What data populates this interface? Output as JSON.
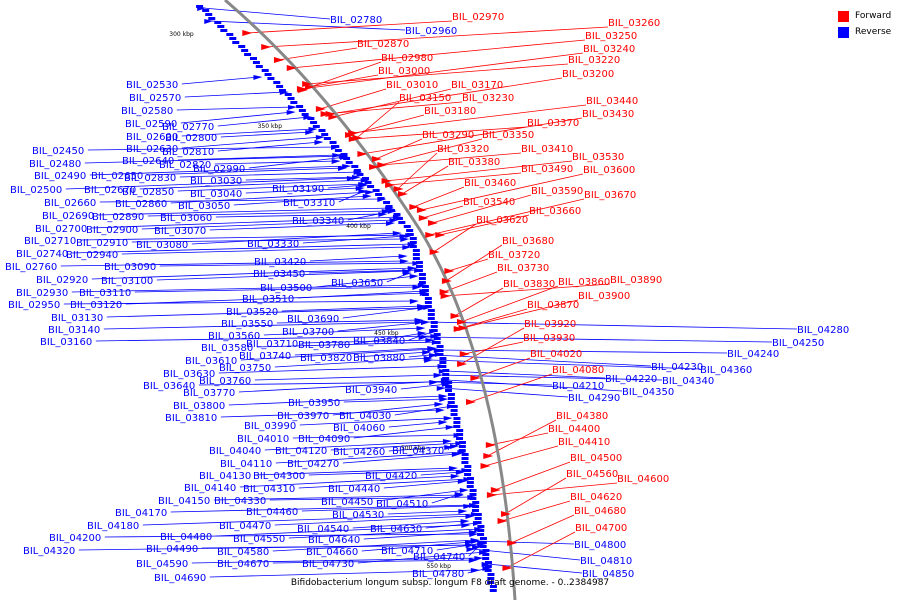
{
  "legend": {
    "forward_label": "Forward",
    "reverse_label": "Reverse",
    "forward_color": "#ff0000",
    "reverse_color": "#0000ff"
  },
  "caption": "Bifidobacterium longum subsp. longum F8 draft genome. - 0..2384987",
  "ticks": [
    "300 kbp",
    "350 kbp",
    "400 kbp",
    "450 kbp",
    "500 kbp",
    "550 kbp"
  ],
  "colors": {
    "backbone": "#888888",
    "forward": "#ff0000",
    "reverse": "#0000ff"
  },
  "reverse_labels": [
    "BIL_02780",
    "BIL_02960",
    "BIL_02530",
    "BIL_02570",
    "BIL_02580",
    "BIL_02590",
    "BIL_02770",
    "BIL_02600",
    "BIL_02800",
    "BIL_02450",
    "BIL_02630",
    "BIL_02810",
    "BIL_02480",
    "BIL_02640",
    "BIL_02820",
    "BIL_02990",
    "BIL_02490",
    "BIL_02650",
    "BIL_02830",
    "BIL_03030",
    "BIL_02500",
    "BIL_02670",
    "BIL_02850",
    "BIL_03040",
    "BIL_02660",
    "BIL_02860",
    "BIL_03050",
    "BIL_02690",
    "BIL_02890",
    "BIL_03060",
    "BIL_02700",
    "BIL_02900",
    "BIL_03070",
    "BIL_02710",
    "BIL_02910",
    "BIL_03080",
    "BIL_02740",
    "BIL_02940",
    "BIL_02760",
    "BIL_03090",
    "BIL_02920",
    "BIL_03100",
    "BIL_02930",
    "BIL_03110",
    "BIL_02950",
    "BIL_03120",
    "BIL_03130",
    "BIL_03140",
    "BIL_03160",
    "BIL_03190",
    "BIL_03310",
    "BIL_03340",
    "BIL_03330",
    "BIL_03420",
    "BIL_03450",
    "BIL_03500",
    "BIL_03650",
    "BIL_03510",
    "BIL_03520",
    "BIL_03550",
    "BIL_03690",
    "BIL_03700",
    "BIL_03560",
    "BIL_03580",
    "BIL_03710",
    "BIL_03780",
    "BIL_03840",
    "BIL_03740",
    "BIL_03820",
    "BIL_03880",
    "BIL_03610",
    "BIL_03750",
    "BIL_03630",
    "BIL_03760",
    "BIL_03640",
    "BIL_03770",
    "BIL_03800",
    "BIL_03810",
    "BIL_03940",
    "BIL_03950",
    "BIL_03970",
    "BIL_04030",
    "BIL_03990",
    "BIL_04060",
    "BIL_04010",
    "BIL_04090",
    "BIL_04040",
    "BIL_04120",
    "BIL_04260",
    "BIL_04370",
    "BIL_04110",
    "BIL_04270",
    "BIL_04130",
    "BIL_04300",
    "BIL_04420",
    "BIL_04140",
    "BIL_04310",
    "BIL_04440",
    "BIL_04150",
    "BIL_04330",
    "BIL_04450",
    "BIL_04510",
    "BIL_04170",
    "BIL_04460",
    "BIL_04530",
    "BIL_04180",
    "BIL_04470",
    "BIL_04540",
    "BIL_04630",
    "BIL_04200",
    "BIL_04480",
    "BIL_04550",
    "BIL_04640",
    "BIL_04320",
    "BIL_04490",
    "BIL_04580",
    "BIL_04660",
    "BIL_04710",
    "BIL_04590",
    "BIL_04670",
    "BIL_04730",
    "BIL_04740",
    "BIL_04690",
    "BIL_04780",
    "BIL_04800",
    "BIL_04810",
    "BIL_04850",
    "BIL_04280",
    "BIL_04250",
    "BIL_04240",
    "BIL_04230",
    "BIL_04360",
    "BIL_04220",
    "BIL_04340",
    "BIL_04210",
    "BIL_04350",
    "BIL_04290"
  ],
  "forward_labels": [
    "BIL_02970",
    "BIL_03260",
    "BIL_03250",
    "BIL_03240",
    "BIL_02870",
    "BIL_03220",
    "BIL_02980",
    "BIL_03200",
    "BIL_03000",
    "BIL_03010",
    "BIL_03170",
    "BIL_03150",
    "BIL_03230",
    "BIL_03180",
    "BIL_03440",
    "BIL_03430",
    "BIL_03370",
    "BIL_03290",
    "BIL_03350",
    "BIL_03320",
    "BIL_03410",
    "BIL_03530",
    "BIL_03380",
    "BIL_03600",
    "BIL_03490",
    "BIL_03460",
    "BIL_03590",
    "BIL_03670",
    "BIL_03540",
    "BIL_03660",
    "BIL_03620",
    "BIL_03680",
    "BIL_03720",
    "BIL_03730",
    "BIL_03830",
    "BIL_03860",
    "BIL_03890",
    "BIL_03870",
    "BIL_03900",
    "BIL_03920",
    "BIL_03930",
    "BIL_04020",
    "BIL_04080",
    "BIL_04380",
    "BIL_04400",
    "BIL_04410",
    "BIL_04500",
    "BIL_04560",
    "BIL_04600",
    "BIL_04620",
    "BIL_04680",
    "BIL_04700"
  ]
}
